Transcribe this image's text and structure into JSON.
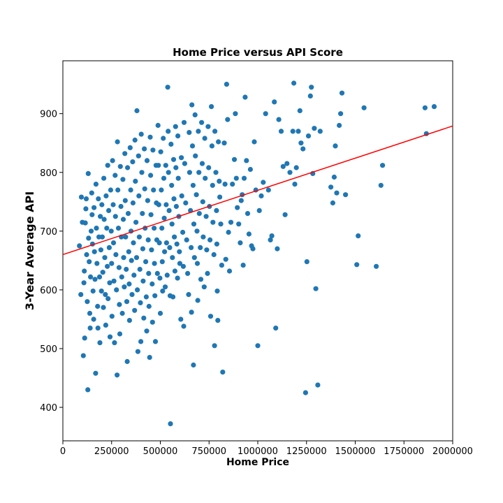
{
  "chart_data": {
    "type": "scatter",
    "title": "Home Price versus API Score",
    "xlabel": "Home Price",
    "ylabel": "3-Year Average API",
    "xlim": [
      0,
      2000000
    ],
    "ylim": [
      343,
      990
    ],
    "xticks": [
      0,
      250000,
      500000,
      750000,
      1000000,
      1250000,
      1500000,
      1750000,
      2000000
    ],
    "yticks": [
      400,
      500,
      600,
      700,
      800,
      900
    ],
    "grid": false,
    "colors": {
      "points": "#1f77b4",
      "trendline": "#ff0000"
    },
    "trendline": {
      "x": [
        0,
        2000000
      ],
      "y": [
        660,
        879
      ]
    },
    "points": [
      [
        85000,
        675
      ],
      [
        92000,
        592
      ],
      [
        95000,
        758
      ],
      [
        100000,
        715
      ],
      [
        105000,
        488
      ],
      [
        108000,
        612
      ],
      [
        110000,
        632
      ],
      [
        112000,
        518
      ],
      [
        115000,
        714
      ],
      [
        118000,
        738
      ],
      [
        120000,
        755
      ],
      [
        122000,
        660
      ],
      [
        125000,
        580
      ],
      [
        128000,
        430
      ],
      [
        130000,
        798
      ],
      [
        132000,
        688
      ],
      [
        135000,
        648
      ],
      [
        138000,
        560
      ],
      [
        140000,
        535
      ],
      [
        142000,
        622
      ],
      [
        145000,
        700
      ],
      [
        148000,
        765
      ],
      [
        150000,
        728
      ],
      [
        152000,
        678
      ],
      [
        155000,
        598
      ],
      [
        158000,
        550
      ],
      [
        160000,
        740
      ],
      [
        162000,
        665
      ],
      [
        165000,
        618
      ],
      [
        168000,
        458
      ],
      [
        170000,
        780
      ],
      [
        172000,
        705
      ],
      [
        175000,
        645
      ],
      [
        178000,
        572
      ],
      [
        180000,
        535
      ],
      [
        182000,
        755
      ],
      [
        185000,
        690
      ],
      [
        188000,
        622
      ],
      [
        190000,
        510
      ],
      [
        192000,
        725
      ],
      [
        195000,
        668
      ],
      [
        198000,
        598
      ],
      [
        200000,
        745
      ],
      [
        202000,
        690
      ],
      [
        205000,
        630
      ],
      [
        208000,
        570
      ],
      [
        210000,
        790
      ],
      [
        212000,
        720
      ],
      [
        215000,
        655
      ],
      [
        218000,
        592
      ],
      [
        220000,
        540
      ],
      [
        222000,
        760
      ],
      [
        225000,
        705
      ],
      [
        228000,
        640
      ],
      [
        230000,
        812
      ],
      [
        232000,
        585
      ],
      [
        235000,
        735
      ],
      [
        238000,
        672
      ],
      [
        240000,
        612
      ],
      [
        242000,
        520
      ],
      [
        245000,
        770
      ],
      [
        248000,
        700
      ],
      [
        250000,
        645
      ],
      [
        252000,
        555
      ],
      [
        255000,
        820
      ],
      [
        258000,
        745
      ],
      [
        260000,
        680
      ],
      [
        262000,
        615
      ],
      [
        265000,
        510
      ],
      [
        268000,
        795
      ],
      [
        270000,
        725
      ],
      [
        272000,
        660
      ],
      [
        275000,
        600
      ],
      [
        278000,
        455
      ],
      [
        280000,
        852
      ],
      [
        282000,
        770
      ],
      [
        285000,
        705
      ],
      [
        288000,
        638
      ],
      [
        290000,
        575
      ],
      [
        292000,
        525
      ],
      [
        295000,
        810
      ],
      [
        298000,
        742
      ],
      [
        300000,
        690
      ],
      [
        302000,
        622
      ],
      [
        305000,
        560
      ],
      [
        308000,
        788
      ],
      [
        310000,
        720
      ],
      [
        312000,
        655
      ],
      [
        315000,
        605
      ],
      [
        318000,
        832
      ],
      [
        320000,
        752
      ],
      [
        322000,
        690
      ],
      [
        325000,
        635
      ],
      [
        328000,
        580
      ],
      [
        330000,
        478
      ],
      [
        332000,
        808
      ],
      [
        335000,
        730
      ],
      [
        338000,
        665
      ],
      [
        340000,
        610
      ],
      [
        342000,
        548
      ],
      [
        345000,
        842
      ],
      [
        348000,
        770
      ],
      [
        350000,
        700
      ],
      [
        352000,
        650
      ],
      [
        355000,
        592
      ],
      [
        358000,
        818
      ],
      [
        360000,
        748
      ],
      [
        362000,
        680
      ],
      [
        365000,
        625
      ],
      [
        368000,
        565
      ],
      [
        370000,
        855
      ],
      [
        372000,
        785
      ],
      [
        375000,
        715
      ],
      [
        378000,
        655
      ],
      [
        380000,
        905
      ],
      [
        382000,
        600
      ],
      [
        385000,
        495
      ],
      [
        388000,
        828
      ],
      [
        390000,
        760
      ],
      [
        392000,
        690
      ],
      [
        395000,
        635
      ],
      [
        398000,
        578
      ],
      [
        400000,
        512
      ],
      [
        402000,
        865
      ],
      [
        405000,
        800
      ],
      [
        408000,
        730
      ],
      [
        410000,
        670
      ],
      [
        412000,
        615
      ],
      [
        415000,
        552
      ],
      [
        418000,
        840
      ],
      [
        420000,
        772
      ],
      [
        422000,
        705
      ],
      [
        425000,
        648
      ],
      [
        428000,
        588
      ],
      [
        430000,
        530
      ],
      [
        432000,
        820
      ],
      [
        435000,
        752
      ],
      [
        438000,
        685
      ],
      [
        440000,
        628
      ],
      [
        442000,
        572
      ],
      [
        445000,
        485
      ],
      [
        448000,
        860
      ],
      [
        450000,
        795
      ],
      [
        452000,
        728
      ],
      [
        455000,
        668
      ],
      [
        458000,
        610
      ],
      [
        460000,
        545
      ],
      [
        462000,
        838
      ],
      [
        465000,
        770
      ],
      [
        468000,
        705
      ],
      [
        470000,
        645
      ],
      [
        472000,
        590
      ],
      [
        475000,
        512
      ],
      [
        478000,
        812
      ],
      [
        480000,
        748
      ],
      [
        482000,
        685
      ],
      [
        485000,
        628
      ],
      [
        488000,
        880
      ],
      [
        490000,
        812
      ],
      [
        492000,
        745
      ],
      [
        495000,
        680
      ],
      [
        498000,
        620
      ],
      [
        500000,
        560
      ],
      [
        502000,
        835
      ],
      [
        505000,
        770
      ],
      [
        508000,
        705
      ],
      [
        510000,
        648
      ],
      [
        512000,
        598
      ],
      [
        515000,
        858
      ],
      [
        518000,
        790
      ],
      [
        520000,
        722
      ],
      [
        522000,
        665
      ],
      [
        525000,
        605
      ],
      [
        528000,
        812
      ],
      [
        530000,
        745
      ],
      [
        532000,
        680
      ],
      [
        535000,
        625
      ],
      [
        538000,
        945
      ],
      [
        540000,
        870
      ],
      [
        542000,
        800
      ],
      [
        545000,
        735
      ],
      [
        548000,
        672
      ],
      [
        550000,
        590
      ],
      [
        552000,
        372
      ],
      [
        555000,
        848
      ],
      [
        558000,
        778
      ],
      [
        560000,
        712
      ],
      [
        562000,
        655
      ],
      [
        565000,
        588
      ],
      [
        568000,
        822
      ],
      [
        570000,
        755
      ],
      [
        572000,
        690
      ],
      [
        575000,
        632
      ],
      [
        578000,
        878
      ],
      [
        580000,
        808
      ],
      [
        582000,
        742
      ],
      [
        585000,
        678
      ],
      [
        588000,
        620
      ],
      [
        590000,
        862
      ],
      [
        592000,
        790
      ],
      [
        595000,
        725
      ],
      [
        598000,
        665
      ],
      [
        600000,
        645
      ],
      [
        605000,
        550
      ],
      [
        608000,
        825
      ],
      [
        610000,
        760
      ],
      [
        615000,
        698
      ],
      [
        618000,
        640
      ],
      [
        620000,
        538
      ],
      [
        622000,
        885
      ],
      [
        625000,
        815
      ],
      [
        630000,
        748
      ],
      [
        635000,
        685
      ],
      [
        640000,
        628
      ],
      [
        645000,
        592
      ],
      [
        648000,
        868
      ],
      [
        650000,
        800
      ],
      [
        655000,
        735
      ],
      [
        658000,
        672
      ],
      [
        660000,
        562
      ],
      [
        662000,
        915
      ],
      [
        665000,
        845
      ],
      [
        668000,
        778
      ],
      [
        670000,
        472
      ],
      [
        672000,
        712
      ],
      [
        675000,
        655
      ],
      [
        678000,
        898
      ],
      [
        680000,
        828
      ],
      [
        685000,
        762
      ],
      [
        688000,
        700
      ],
      [
        690000,
        645
      ],
      [
        692000,
        582
      ],
      [
        695000,
        870
      ],
      [
        698000,
        800
      ],
      [
        700000,
        730
      ],
      [
        705000,
        672
      ],
      [
        708000,
        618
      ],
      [
        712000,
        885
      ],
      [
        715000,
        815
      ],
      [
        718000,
        750
      ],
      [
        720000,
        690
      ],
      [
        725000,
        605
      ],
      [
        728000,
        858
      ],
      [
        730000,
        790
      ],
      [
        735000,
        725
      ],
      [
        738000,
        668
      ],
      [
        742000,
        628
      ],
      [
        745000,
        878
      ],
      [
        748000,
        808
      ],
      [
        752000,
        742
      ],
      [
        755000,
        685
      ],
      [
        758000,
        555
      ],
      [
        762000,
        912
      ],
      [
        765000,
        845
      ],
      [
        768000,
        778
      ],
      [
        770000,
        715
      ],
      [
        775000,
        660
      ],
      [
        778000,
        505
      ],
      [
        780000,
        870
      ],
      [
        785000,
        800
      ],
      [
        788000,
        735
      ],
      [
        790000,
        678
      ],
      [
        792000,
        598
      ],
      [
        795000,
        548
      ],
      [
        798000,
        852
      ],
      [
        802000,
        785
      ],
      [
        805000,
        758
      ],
      [
        810000,
        712
      ],
      [
        815000,
        642
      ],
      [
        820000,
        460
      ],
      [
        828000,
        850
      ],
      [
        832000,
        780
      ],
      [
        836000,
        652
      ],
      [
        840000,
        950
      ],
      [
        845000,
        890
      ],
      [
        850000,
        698
      ],
      [
        855000,
        632
      ],
      [
        862000,
        715
      ],
      [
        870000,
        780
      ],
      [
        880000,
        822
      ],
      [
        885000,
        900
      ],
      [
        890000,
        790
      ],
      [
        895000,
        740
      ],
      [
        902000,
        712
      ],
      [
        910000,
        680
      ],
      [
        915000,
        752
      ],
      [
        920000,
        762
      ],
      [
        925000,
        642
      ],
      [
        930000,
        790
      ],
      [
        935000,
        928
      ],
      [
        942000,
        820
      ],
      [
        948000,
        730
      ],
      [
        955000,
        695
      ],
      [
        962000,
        805
      ],
      [
        968000,
        675
      ],
      [
        975000,
        670
      ],
      [
        982000,
        852
      ],
      [
        990000,
        770
      ],
      [
        1000000,
        505
      ],
      [
        1008000,
        735
      ],
      [
        1018000,
        760
      ],
      [
        1028000,
        783
      ],
      [
        1040000,
        900
      ],
      [
        1055000,
        770
      ],
      [
        1065000,
        685
      ],
      [
        1072000,
        692
      ],
      [
        1085000,
        920
      ],
      [
        1092000,
        535
      ],
      [
        1100000,
        670
      ],
      [
        1108000,
        890
      ],
      [
        1120000,
        870
      ],
      [
        1130000,
        810
      ],
      [
        1140000,
        728
      ],
      [
        1150000,
        815
      ],
      [
        1165000,
        800
      ],
      [
        1180000,
        870
      ],
      [
        1185000,
        952
      ],
      [
        1190000,
        780
      ],
      [
        1198000,
        808
      ],
      [
        1208000,
        870
      ],
      [
        1216000,
        905
      ],
      [
        1222000,
        850
      ],
      [
        1232000,
        840
      ],
      [
        1245000,
        425
      ],
      [
        1252000,
        648
      ],
      [
        1260000,
        862
      ],
      [
        1270000,
        930
      ],
      [
        1275000,
        945
      ],
      [
        1282000,
        798
      ],
      [
        1290000,
        875
      ],
      [
        1298000,
        602
      ],
      [
        1308000,
        438
      ],
      [
        1320000,
        870
      ],
      [
        1375000,
        775
      ],
      [
        1385000,
        748
      ],
      [
        1392000,
        792
      ],
      [
        1398000,
        845
      ],
      [
        1405000,
        765
      ],
      [
        1418000,
        880
      ],
      [
        1425000,
        900
      ],
      [
        1432000,
        935
      ],
      [
        1450000,
        762
      ],
      [
        1508000,
        643
      ],
      [
        1515000,
        692
      ],
      [
        1545000,
        910
      ],
      [
        1608000,
        640
      ],
      [
        1632000,
        778
      ],
      [
        1640000,
        812
      ],
      [
        1858000,
        910
      ],
      [
        1865000,
        866
      ],
      [
        1905000,
        912
      ]
    ]
  }
}
